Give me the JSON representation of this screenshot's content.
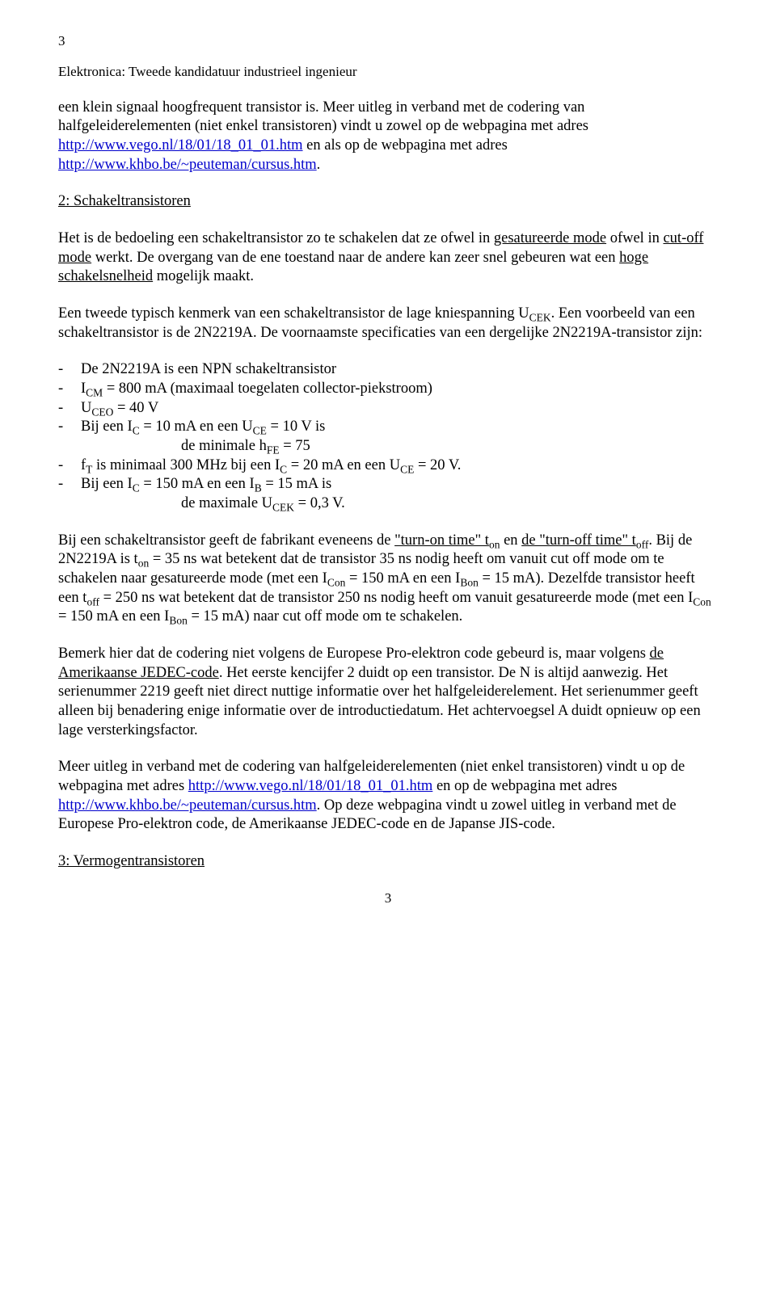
{
  "pageTop": "3",
  "runningHeader": "Elektronica: Tweede kandidatuur industrieel ingenieur",
  "p1_a": "een klein signaal hoogfrequent transistor is. Meer uitleg in verband met de codering van halfgeleiderelementen (niet enkel transistoren) vindt u zowel op de webpagina met adres ",
  "link1": "http://www.vego.nl/18/01/18_01_01.htm",
  "p1_b": " en als op de webpagina met adres ",
  "link2": "http://www.khbo.be/~peuteman/cursus.htm",
  "p1_c": ".",
  "sec2": "2: Schakeltransistoren",
  "p2_a": "Het is de bedoeling een schakeltransistor zo te schakelen dat ze ofwel in ",
  "p2_u1": "gesatureerde mode",
  "p2_b": " ofwel in ",
  "p2_u2": "cut-off mode",
  "p2_c": " werkt. De overgang van de ene toestand naar de andere kan  zeer snel gebeuren wat een ",
  "p2_u3": "hoge schakelsnelheid",
  "p2_d": " mogelijk maakt.",
  "p3_a": "Een tweede typisch kenmerk van een schakeltransistor de lage kniespanning U",
  "p3_s1": "CEK",
  "p3_b": ". Een voorbeeld van een schakeltransistor is de 2N2219A. De voornaamste specificaties van een dergelijke 2N2219A-transistor zijn:",
  "li": {
    "1": "De 2N2219A is een NPN schakeltransistor",
    "2a": "I",
    "2s": "CM",
    "2b": " = 800 mA (maximaal toegelaten collector-piekstroom)",
    "3a": "U",
    "3s": "CEO",
    "3b": " = 40 V",
    "4a": " Bij een I",
    "4s1": "C",
    "4b": " = 10 mA en een U",
    "4s2": "CE",
    "4c": " = 10 V is",
    "4n1a": "de minimale h",
    "4n1s": "FE",
    "4n1b": " = 75",
    "5a": " f",
    "5s1": "T",
    "5b": " is minimaal 300 MHz bij een I",
    "5s2": "C",
    "5c": " = 20 mA en een U",
    "5s3": "CE",
    "5d": " = 20 V.",
    "6a": " Bij een I",
    "6s1": "C",
    "6b": " = 150 mA en een I",
    "6s2": "B",
    "6c": " = 15 mA is",
    "6n1a": "de maximale U",
    "6n1s": "CEK",
    "6n1b": " = 0,3 V."
  },
  "p4_a": "Bij een schakeltransistor geeft de fabrikant eveneens de ",
  "p4_u1": "\"turn-on time\" t",
  "p4_s1": "on",
  "p4_b": " en ",
  "p4_u2": "de \"turn-off time\" t",
  "p4_s2": "off",
  "p4_c": ". Bij de 2N2219A is t",
  "p4_s3": "on",
  "p4_d": " = 35 ns wat betekent dat de transistor 35 ns nodig heeft om vanuit cut off mode om te schakelen naar gesatureerde mode (met een I",
  "p4_s4": "Con",
  "p4_e": " = 150 mA en een I",
  "p4_s5": "Bon",
  "p4_f": " = 15 mA). Dezelfde transistor heeft een t",
  "p4_s6": "off",
  "p4_g": " = 250 ns wat betekent dat de transistor 250 ns nodig heeft om vanuit gesatureerde mode (met een I",
  "p4_s7": "Con",
  "p4_h": " = 150 mA en een I",
  "p4_s8": "Bon",
  "p4_i": " = 15 mA) naar cut off mode om te schakelen.",
  "p5_a": "Bemerk hier dat de codering niet volgens de Europese Pro-elektron code gebeurd is, maar volgens ",
  "p5_u1": "de Amerikaanse JEDEC-code",
  "p5_b": ". Het eerste kencijfer 2 duidt op een transistor. De N is altijd aanwezig. Het serienummer 2219 geeft niet direct nuttige informatie over het halfgeleiderelement. Het serienummer geeft alleen bij benadering enige informatie over de introductiedatum. Het achtervoegsel A duidt opnieuw op een lage versterkingsfactor.",
  "p6_a": "Meer uitleg in verband met de codering van halfgeleiderelementen (niet enkel transistoren) vindt u op de webpagina met adres ",
  "p6_b": " en op de webpagina met adres ",
  "p6_c": ". Op deze webpagina vindt u zowel uitleg in verband met de Europese Pro-elektron code, de Amerikaanse JEDEC-code en de Japanse JIS-code.",
  "sec3": "3: Vermogentransistoren",
  "pageBottom": "3",
  "dash": "-"
}
